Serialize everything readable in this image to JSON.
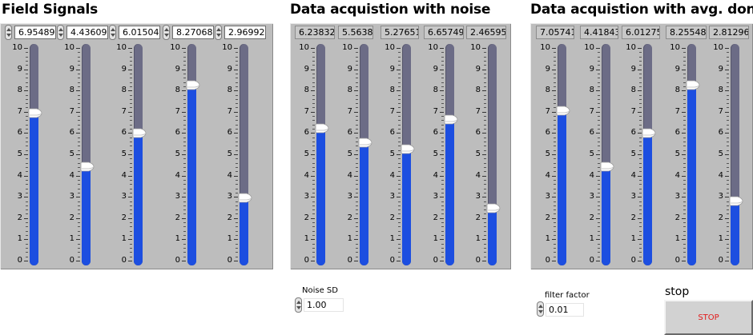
{
  "groups": [
    {
      "id": "field",
      "title": "Field Signals",
      "type": "control",
      "values": [
        6.95489,
        4.43609,
        6.01504,
        8.27068,
        2.96992
      ],
      "display": [
        "6.95489",
        "4.43609",
        "6.01504",
        "8.27068",
        "2.96992"
      ]
    },
    {
      "id": "noise",
      "title": "Data acquistion with noise",
      "type": "indicator",
      "values": [
        6.23832,
        5.5638,
        5.27651,
        6.65749,
        2.46595
      ],
      "display": [
        "6.23832",
        "5.5638",
        "5.27651",
        "6.65749",
        "2.46595"
      ]
    },
    {
      "id": "avg",
      "title": "Data acquistion with avg. done",
      "type": "indicator",
      "values": [
        7.05741,
        4.41843,
        6.01275,
        8.25548,
        2.81296
      ],
      "display": [
        "7.05741",
        "4.41843",
        "6.01275",
        "8.25548",
        "2.81296"
      ]
    }
  ],
  "scale": {
    "min": 0,
    "max": 10,
    "labels": [
      "10",
      "9",
      "8",
      "7",
      "6",
      "5",
      "4",
      "3",
      "2",
      "1",
      "0"
    ]
  },
  "noise_sd": {
    "label": "Noise SD",
    "value": "1.00"
  },
  "filter_factor": {
    "label": "filter factor",
    "value": "0.01"
  },
  "stop": {
    "label": "stop",
    "button_text": "STOP",
    "text_color": "#e21a1a"
  },
  "colors": {
    "panel": "#bdbdbd",
    "track": "#6c6c86",
    "fill": "#1c4ee0"
  }
}
